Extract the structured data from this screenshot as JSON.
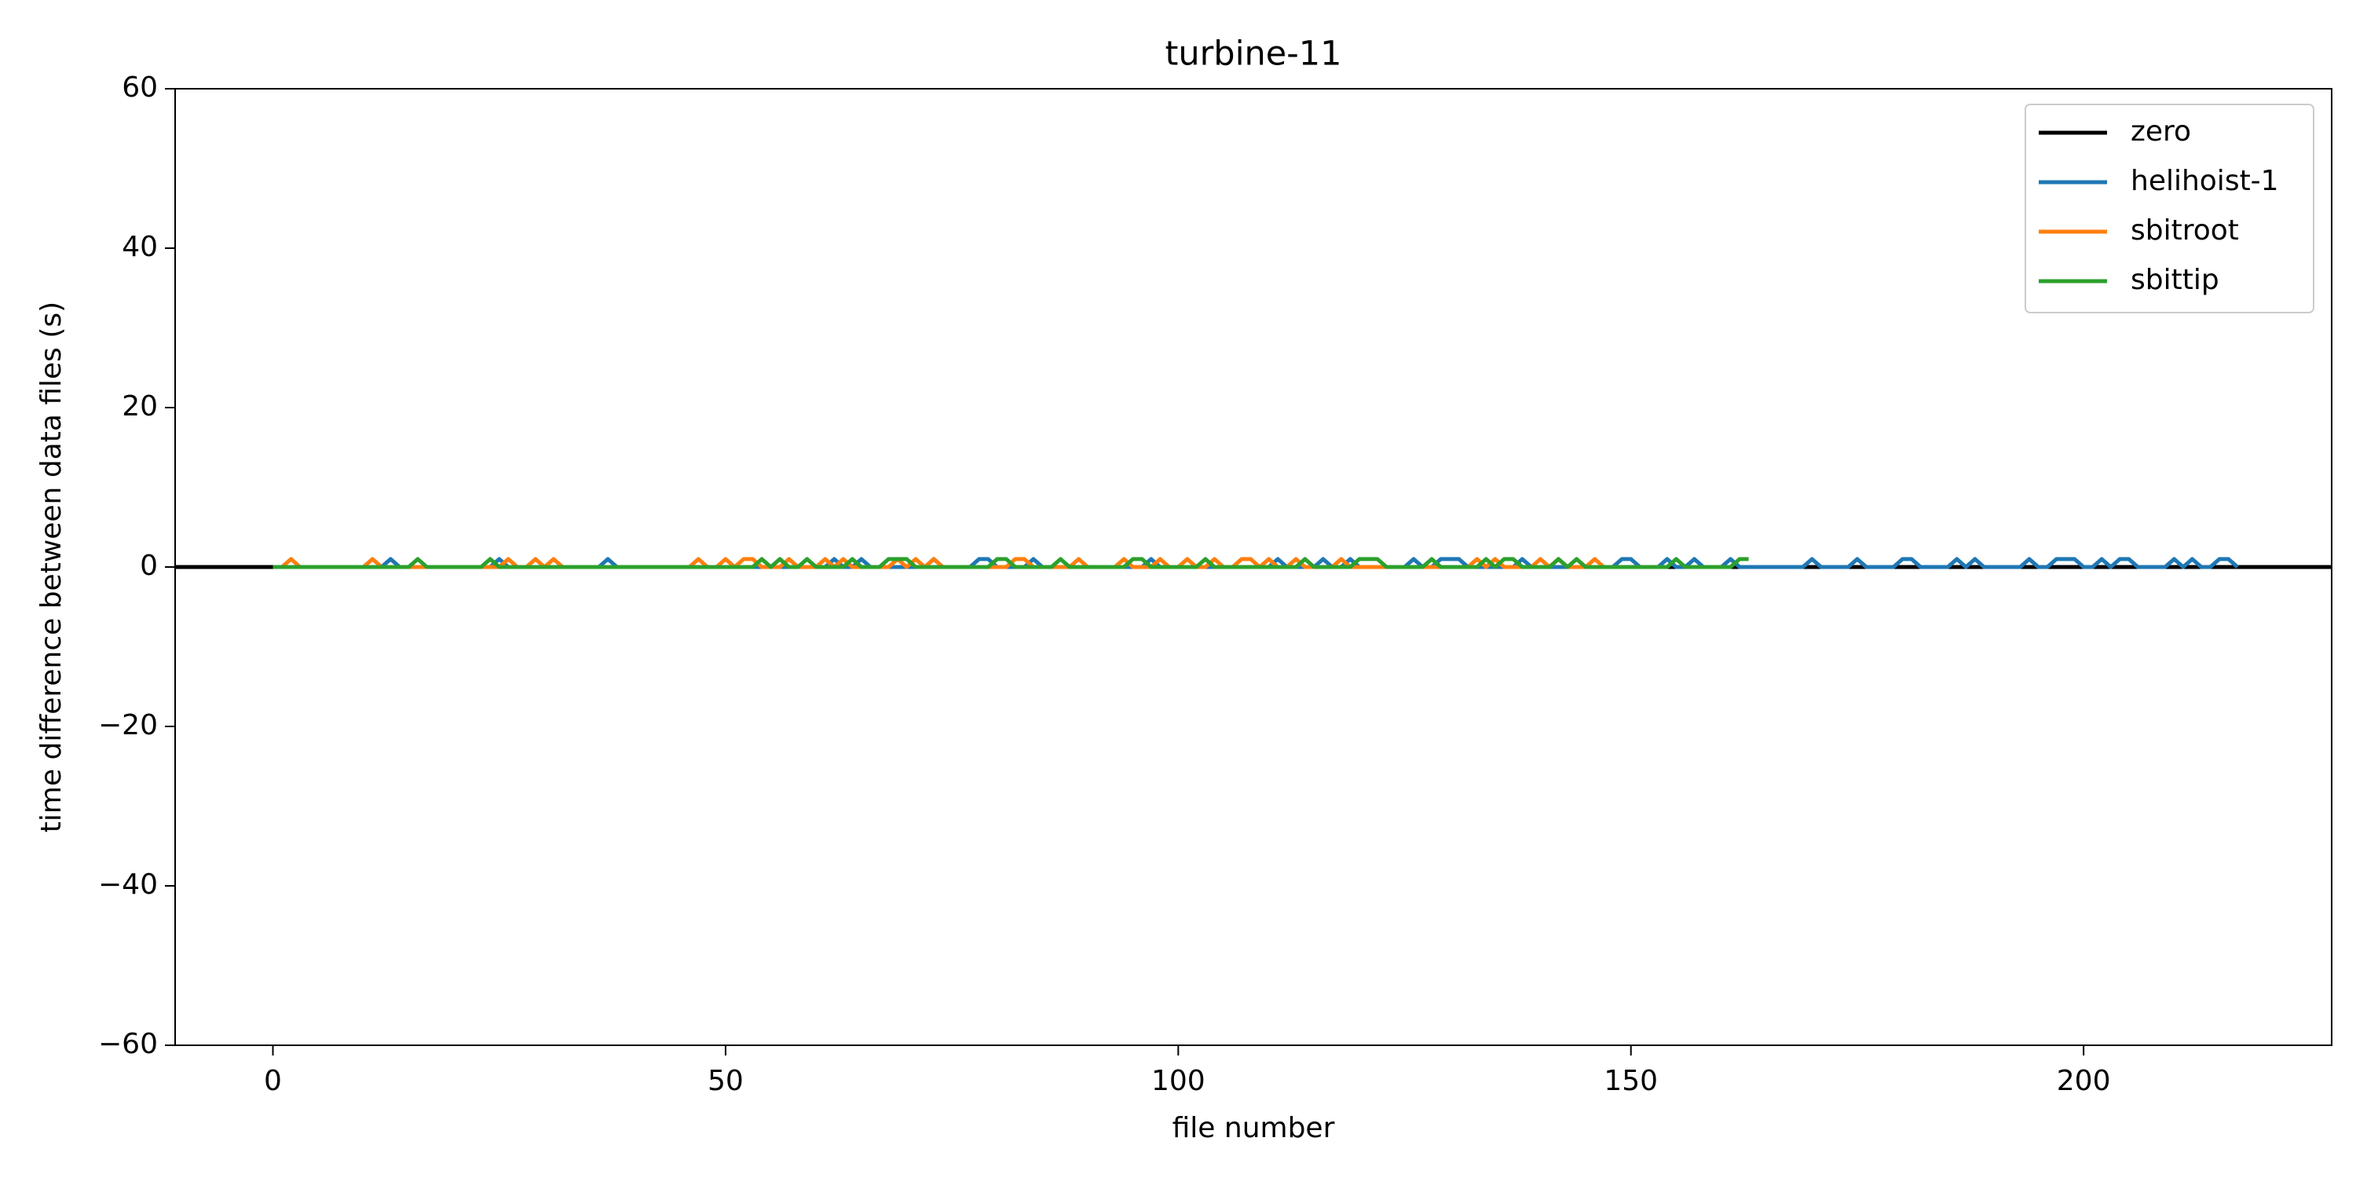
{
  "chart_data": {
    "type": "line",
    "title": "turbine-11",
    "xlabel": "file number",
    "ylabel": "time difference between data files (s)",
    "xlim": [
      -10.8,
      227.4
    ],
    "ylim": [
      -60,
      60
    ],
    "xticks": [
      0,
      50,
      100,
      150,
      200
    ],
    "yticks": [
      {
        "value": -60,
        "label": "−60"
      },
      {
        "value": -40,
        "label": "−40"
      },
      {
        "value": -20,
        "label": "−20"
      },
      0,
      20,
      40,
      60
    ],
    "legend": "upper right",
    "series": [
      {
        "name": "zero",
        "color": "#000000",
        "values": [
          0
        ]
      },
      {
        "name": "helihoist-1",
        "color": "#1f77b4",
        "values": [
          0,
          0,
          0,
          0,
          0,
          0,
          0,
          0,
          0,
          0,
          0,
          0,
          0,
          1,
          0,
          0,
          0,
          0,
          0,
          0,
          0,
          0,
          0,
          0,
          0,
          1,
          0,
          0,
          0,
          0,
          0,
          0,
          0,
          0,
          0,
          0,
          0,
          1,
          0,
          0,
          0,
          0,
          0,
          0,
          0,
          0,
          0,
          0,
          0,
          0,
          0,
          0,
          0,
          0,
          0,
          0,
          0,
          0,
          0,
          0,
          0,
          0,
          1,
          0,
          0,
          1,
          0,
          0,
          0,
          0,
          0,
          0,
          0,
          1,
          0,
          0,
          0,
          0,
          1,
          1,
          0,
          0,
          0,
          0,
          1,
          0,
          0,
          0,
          0,
          0,
          0,
          0,
          0,
          0,
          0,
          0,
          0,
          1,
          0,
          0,
          0,
          0,
          0,
          0,
          0,
          0,
          0,
          0,
          0,
          0,
          0,
          1,
          0,
          0,
          0,
          0,
          1,
          0,
          0,
          1,
          0,
          0,
          0,
          0,
          0,
          0,
          1,
          0,
          0,
          1,
          1,
          1,
          0,
          0,
          0,
          0,
          0,
          0,
          1,
          0,
          0,
          0,
          0,
          0,
          0,
          0,
          0,
          0,
          0,
          1,
          1,
          0,
          0,
          0,
          1,
          0,
          0,
          1,
          0,
          0,
          0,
          1,
          0,
          0,
          0,
          0,
          0,
          0,
          0,
          0,
          1,
          0,
          0,
          0,
          0,
          1,
          0,
          0,
          0,
          0,
          1,
          1,
          0,
          0,
          0,
          0,
          1,
          0,
          1,
          0,
          0,
          0,
          0,
          0,
          1,
          0,
          0,
          1,
          1,
          1,
          0,
          0,
          1,
          0,
          1,
          1,
          0,
          0,
          0,
          0,
          1,
          0,
          1,
          0,
          0,
          1,
          1,
          0
        ]
      },
      {
        "name": "sbitroot",
        "color": "#ff7f0e",
        "values": [
          0,
          0,
          1,
          0,
          0,
          0,
          0,
          0,
          0,
          0,
          0,
          1,
          0,
          0,
          0,
          0,
          0,
          0,
          0,
          0,
          0,
          0,
          0,
          0,
          0,
          0,
          1,
          0,
          0,
          1,
          0,
          1,
          0,
          0,
          0,
          0,
          0,
          0,
          0,
          0,
          0,
          0,
          0,
          0,
          0,
          0,
          0,
          1,
          0,
          0,
          1,
          0,
          1,
          1,
          0,
          0,
          0,
          1,
          0,
          0,
          0,
          1,
          0,
          1,
          0,
          0,
          0,
          0,
          0,
          1,
          0,
          1,
          0,
          1,
          0,
          0,
          0,
          0,
          0,
          0,
          0,
          0,
          1,
          1,
          0,
          0,
          0,
          0,
          0,
          1,
          0,
          0,
          0,
          0,
          1,
          0,
          0,
          0,
          1,
          0,
          0,
          1,
          0,
          0,
          1,
          0,
          0,
          1,
          1,
          0,
          1,
          0,
          0,
          1,
          0,
          0,
          0,
          0,
          1,
          0,
          0,
          0,
          0,
          0,
          0,
          0,
          0,
          0,
          0,
          0,
          0,
          0,
          0,
          1,
          0,
          1,
          0,
          0,
          0,
          0,
          1,
          0,
          1,
          0,
          0,
          0,
          1,
          0
        ]
      },
      {
        "name": "sbittip",
        "color": "#2ca02c",
        "values": [
          0,
          0,
          0,
          0,
          0,
          0,
          0,
          0,
          0,
          0,
          0,
          0,
          0,
          0,
          0,
          0,
          1,
          0,
          0,
          0,
          0,
          0,
          0,
          0,
          1,
          0,
          0,
          0,
          0,
          0,
          0,
          0,
          0,
          0,
          0,
          0,
          0,
          0,
          0,
          0,
          0,
          0,
          0,
          0,
          0,
          0,
          0,
          0,
          0,
          0,
          0,
          0,
          0,
          0,
          1,
          0,
          1,
          0,
          0,
          1,
          0,
          0,
          0,
          0,
          1,
          0,
          0,
          0,
          1,
          1,
          1,
          0,
          0,
          0,
          0,
          0,
          0,
          0,
          0,
          0,
          1,
          1,
          0,
          0,
          0,
          0,
          0,
          1,
          0,
          0,
          0,
          0,
          0,
          0,
          0,
          1,
          1,
          0,
          0,
          0,
          0,
          0,
          0,
          1,
          0,
          0,
          0,
          0,
          0,
          0,
          0,
          0,
          0,
          0,
          1,
          0,
          0,
          0,
          0,
          0,
          1,
          1,
          1,
          0,
          0,
          0,
          0,
          0,
          1,
          0,
          0,
          0,
          0,
          0,
          1,
          0,
          1,
          1,
          0,
          0,
          0,
          0,
          1,
          0,
          1,
          0,
          0,
          0,
          0,
          0,
          0,
          0,
          0,
          0,
          0,
          1,
          0,
          0,
          0,
          0,
          0,
          0,
          1,
          1
        ]
      }
    ]
  }
}
